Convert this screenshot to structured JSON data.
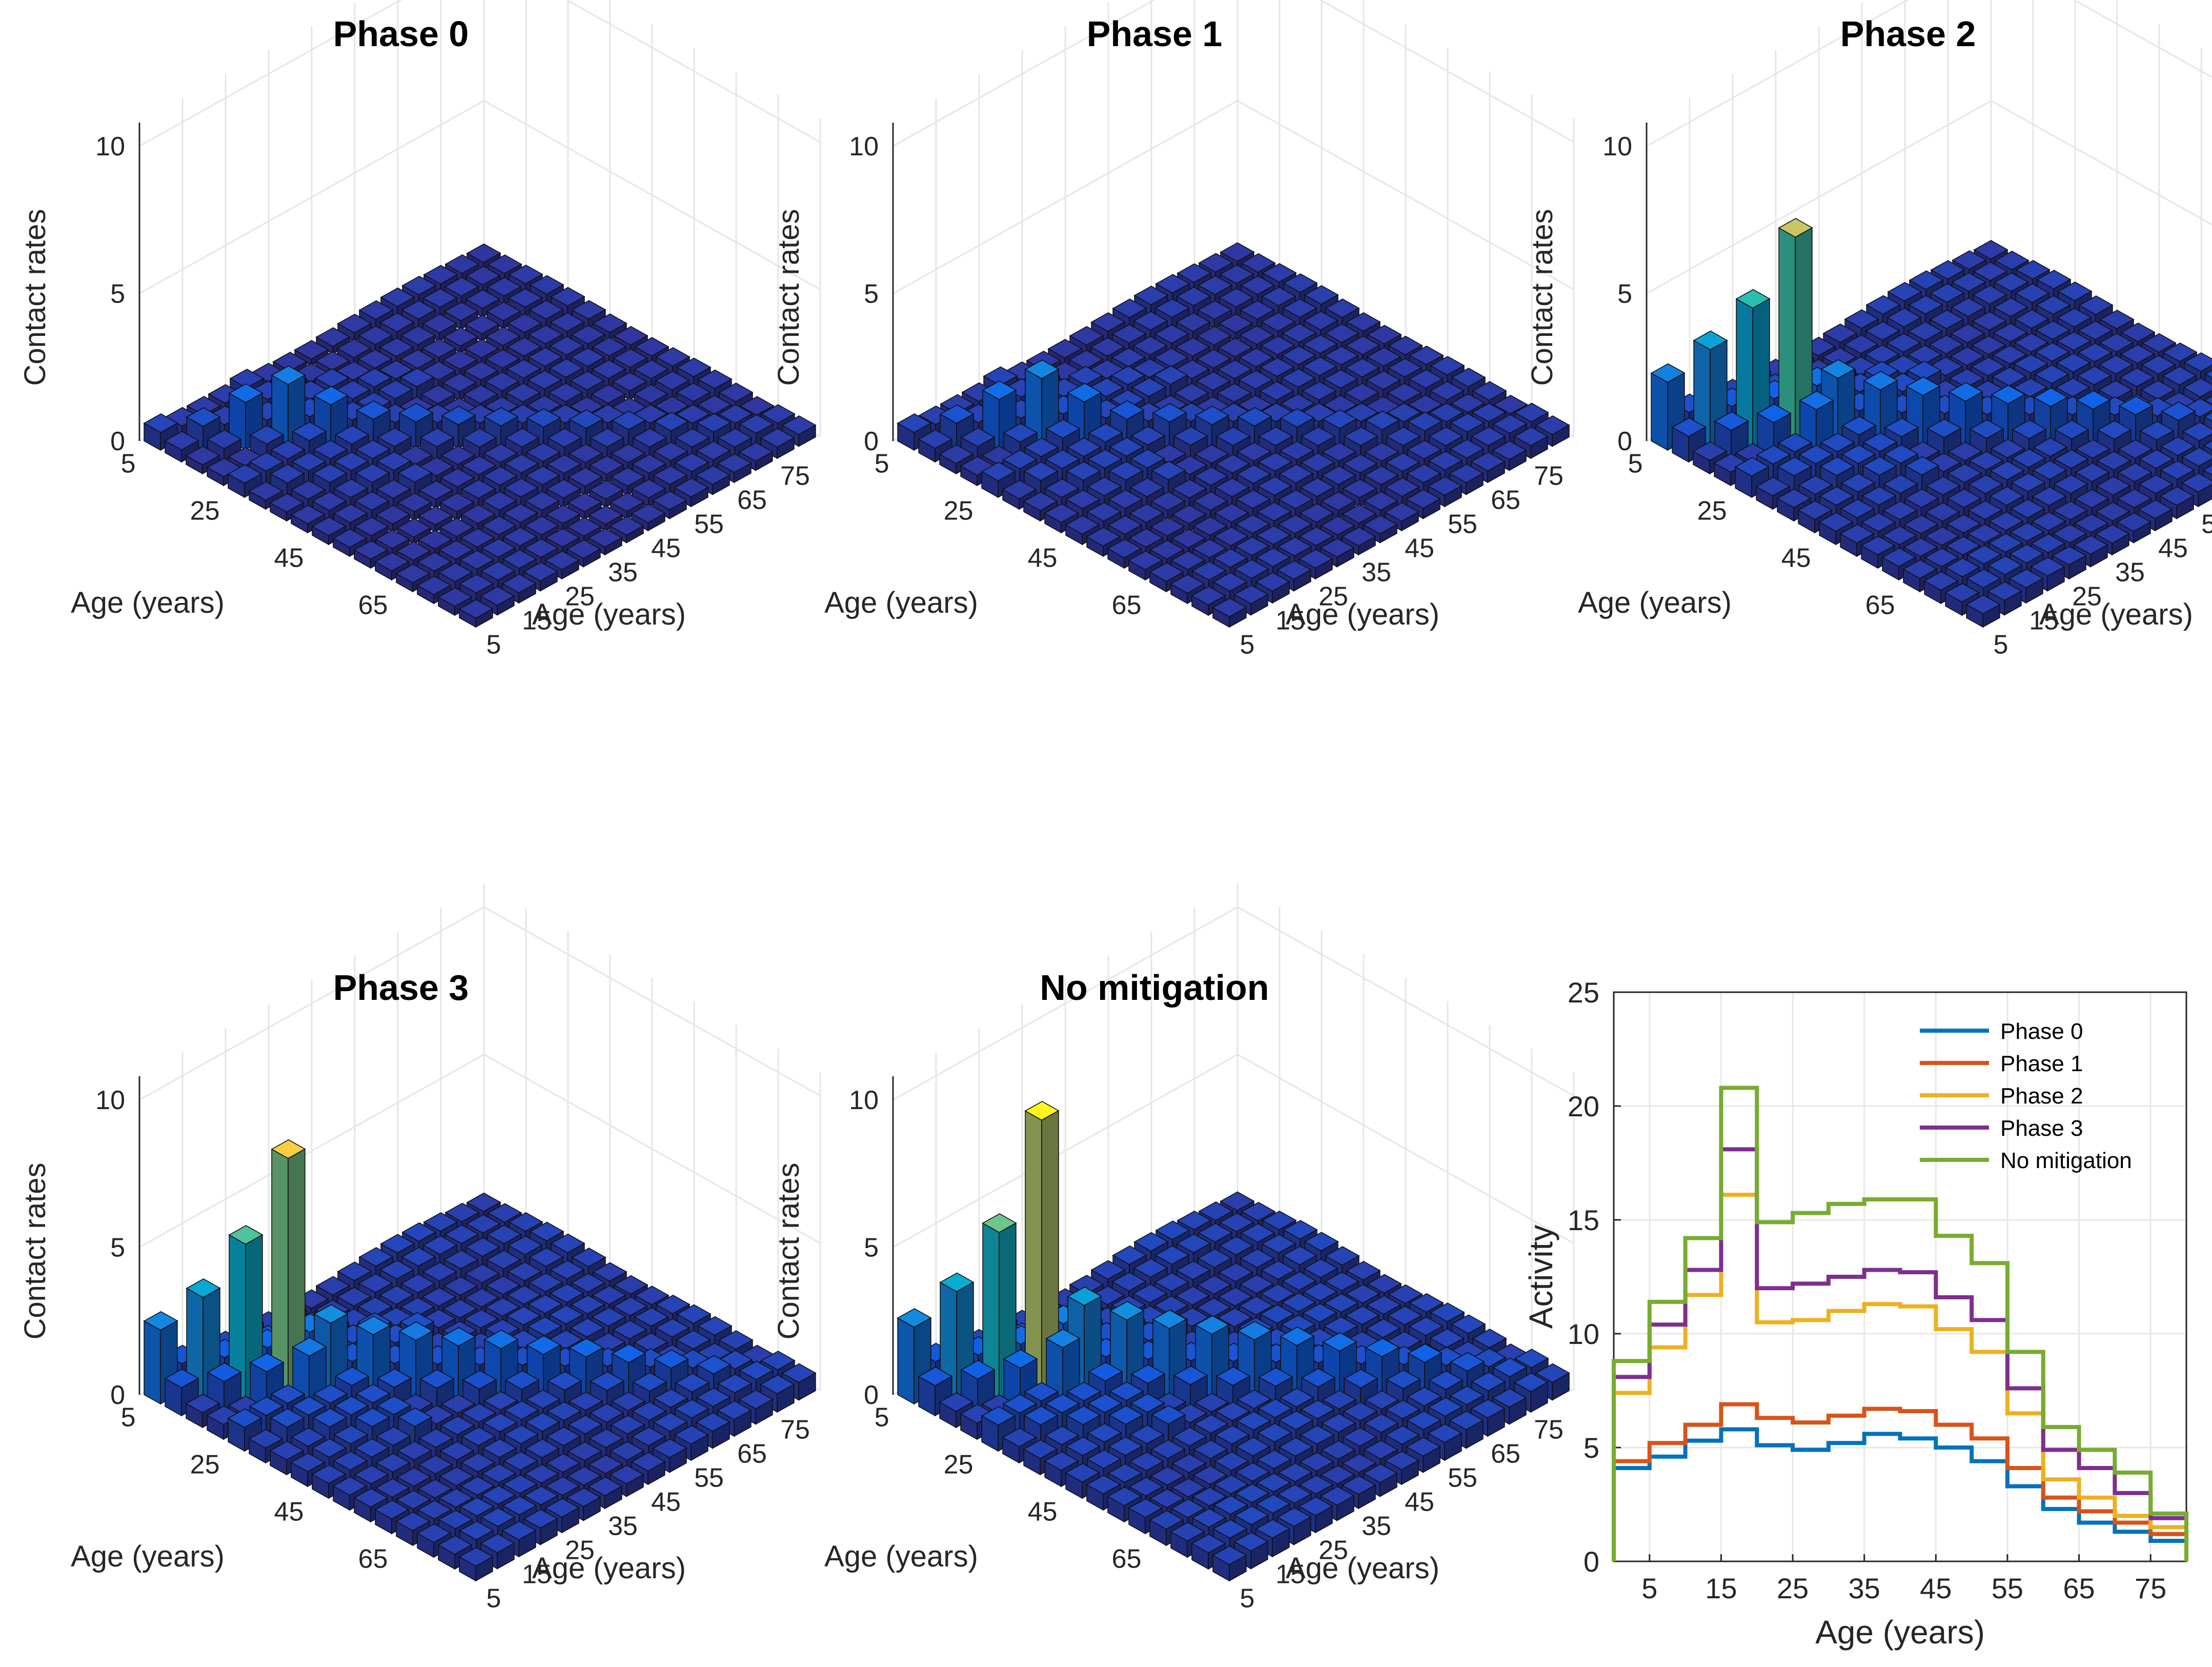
{
  "chart_data": [
    {
      "type": "bar3d",
      "title": "Phase 0",
      "zlabel": "Contact rates",
      "xlabel": "Age (years)",
      "ylabel": "Age (years)",
      "zticks": [
        "0",
        "5",
        "10"
      ],
      "ageticks_left": [
        "5",
        "25",
        "45",
        "65"
      ],
      "ageticks_right": [
        "5",
        "15",
        "25",
        "35",
        "45",
        "55",
        "65",
        "75"
      ],
      "zlim": [
        0,
        10
      ],
      "diag_peak": [
        0.6,
        0.8,
        1.6,
        2.2,
        1.5,
        1.0,
        0.9,
        0.8,
        0.75,
        0.7,
        0.65,
        0.6,
        0.55,
        0.5,
        0.45,
        0.4
      ],
      "background": 0.3
    },
    {
      "type": "bar3d",
      "title": "Phase 1",
      "zlabel": "Contact rates",
      "xlabel": "Age (years)",
      "ylabel": "Age (years)",
      "zticks": [
        "0",
        "5",
        "10"
      ],
      "ageticks_left": [
        "5",
        "25",
        "45",
        "65"
      ],
      "ageticks_right": [
        "5",
        "15",
        "25",
        "35",
        "45",
        "55",
        "65",
        "75"
      ],
      "zlim": [
        0,
        10
      ],
      "diag_peak": [
        0.6,
        0.9,
        1.7,
        2.4,
        1.6,
        1.0,
        0.9,
        0.8,
        0.75,
        0.7,
        0.65,
        0.6,
        0.55,
        0.5,
        0.45,
        0.4
      ],
      "background": 0.35
    },
    {
      "type": "bar3d",
      "title": "Phase 2",
      "zlabel": "Contact rates",
      "xlabel": "Age (years)",
      "ylabel": "Age (years)",
      "zticks": [
        "0",
        "5",
        "10"
      ],
      "ageticks_left": [
        "5",
        "25",
        "45",
        "65"
      ],
      "ageticks_right": [
        "5",
        "15",
        "25",
        "35",
        "45",
        "55",
        "65",
        "75"
      ],
      "zlim": [
        0,
        10
      ],
      "diag_peak": [
        2.3,
        3.4,
        4.8,
        7.2,
        2.4,
        2.0,
        1.8,
        1.6,
        1.5,
        1.4,
        1.3,
        1.1,
        0.9,
        0.7,
        0.6,
        0.5
      ],
      "background": 0.45
    },
    {
      "type": "bar3d",
      "title": "Phase 3",
      "zlabel": "Contact rates",
      "xlabel": "Age (years)",
      "ylabel": "Age (years)",
      "zticks": [
        "0",
        "5",
        "10"
      ],
      "ageticks_left": [
        "5",
        "25",
        "45",
        "65"
      ],
      "ageticks_right": [
        "5",
        "15",
        "25",
        "35",
        "45",
        "55",
        "65",
        "75"
      ],
      "zlim": [
        0,
        10
      ],
      "diag_peak": [
        2.5,
        3.6,
        5.4,
        8.3,
        2.7,
        2.3,
        2.1,
        1.9,
        1.8,
        1.6,
        1.5,
        1.3,
        1.1,
        0.9,
        0.7,
        0.6
      ],
      "background": 0.5
    },
    {
      "type": "bar3d",
      "title": "No mitigation",
      "zlabel": "Contact rates",
      "xlabel": "Age (years)",
      "ylabel": "Age (years)",
      "zticks": [
        "0",
        "5",
        "10"
      ],
      "ageticks_left": [
        "5",
        "25",
        "45",
        "65"
      ],
      "ageticks_right": [
        "5",
        "15",
        "25",
        "35",
        "45",
        "55",
        "65",
        "75"
      ],
      "zlim": [
        0,
        10
      ],
      "diag_peak": [
        2.6,
        3.8,
        5.8,
        9.6,
        3.3,
        2.8,
        2.5,
        2.3,
        2.1,
        1.9,
        1.7,
        1.5,
        1.3,
        1.0,
        0.8,
        0.6
      ],
      "background": 0.55
    },
    {
      "type": "line",
      "step": true,
      "xlabel": "Age (years)",
      "ylabel": "Activity",
      "xlim": [
        0,
        80
      ],
      "ylim": [
        0,
        25
      ],
      "xticks": [
        5,
        15,
        25,
        35,
        45,
        55,
        65,
        75
      ],
      "yticks": [
        0,
        5,
        10,
        15,
        20,
        25
      ],
      "legend_position": "top-right",
      "grid": true,
      "edges": [
        0,
        5,
        10,
        15,
        20,
        25,
        30,
        35,
        40,
        45,
        50,
        55,
        60,
        65,
        70,
        75,
        80
      ],
      "series": [
        {
          "name": "Phase 0",
          "color": "#0072BD",
          "values": [
            4.1,
            4.6,
            5.3,
            5.8,
            5.1,
            4.9,
            5.2,
            5.6,
            5.4,
            5.0,
            4.4,
            3.3,
            2.3,
            1.7,
            1.3,
            0.9
          ]
        },
        {
          "name": "Phase 1",
          "color": "#D95319",
          "values": [
            4.4,
            5.2,
            6.0,
            6.9,
            6.3,
            6.1,
            6.4,
            6.7,
            6.6,
            6.0,
            5.4,
            4.1,
            2.8,
            2.2,
            1.7,
            1.2
          ]
        },
        {
          "name": "Phase 2",
          "color": "#EDB120",
          "values": [
            7.4,
            9.4,
            11.7,
            16.1,
            10.5,
            10.6,
            11.0,
            11.3,
            11.2,
            10.2,
            9.2,
            6.5,
            3.6,
            2.8,
            2.0,
            1.5
          ]
        },
        {
          "name": "Phase 3",
          "color": "#7E2F8E",
          "values": [
            8.1,
            10.4,
            12.8,
            18.1,
            12.0,
            12.2,
            12.5,
            12.8,
            12.7,
            11.6,
            10.6,
            7.6,
            4.9,
            4.1,
            3.0,
            1.9
          ]
        },
        {
          "name": "No mitigation",
          "color": "#77AC30",
          "values": [
            8.8,
            11.4,
            14.2,
            20.8,
            14.9,
            15.3,
            15.7,
            15.9,
            15.9,
            14.3,
            13.1,
            9.2,
            5.9,
            4.9,
            3.9,
            2.1
          ]
        }
      ]
    }
  ]
}
